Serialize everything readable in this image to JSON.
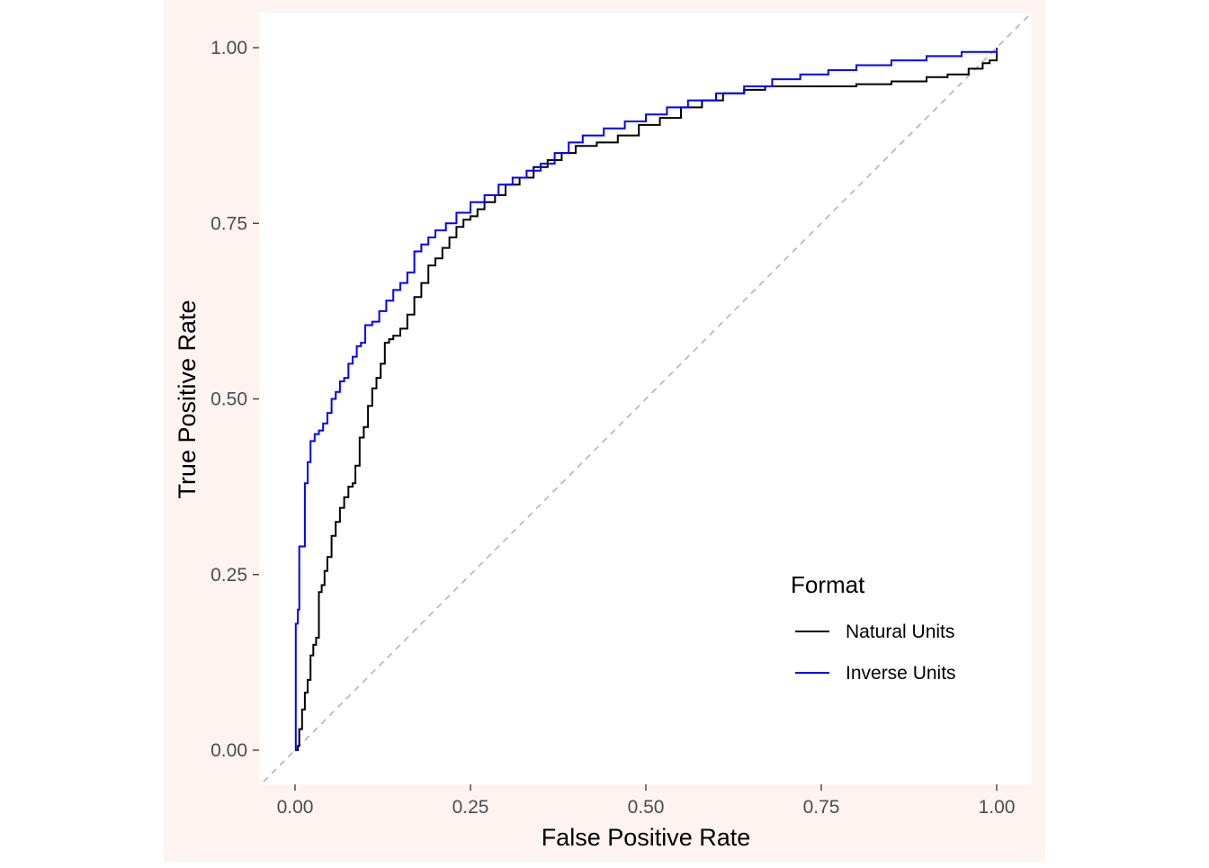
{
  "chart_data": {
    "type": "line",
    "title": "",
    "xlabel": "False Positive Rate",
    "ylabel": "True Positive Rate",
    "xlim": [
      0,
      1
    ],
    "ylim": [
      0,
      1
    ],
    "x_ticks": [
      "0.00",
      "0.25",
      "0.50",
      "0.75",
      "1.00"
    ],
    "y_ticks": [
      "0.00",
      "0.25",
      "0.50",
      "0.75",
      "1.00"
    ],
    "grid": false,
    "reference_line": {
      "from": [
        0,
        0
      ],
      "to": [
        1,
        1
      ],
      "style": "dashed",
      "color": "#b3b3b3"
    },
    "legend": {
      "title": "Format",
      "placement": "bottom-right-inside"
    },
    "colors": {
      "panel_border": "#fdf3f1",
      "axis_text": "#4d4d4d",
      "title_text": "#000000"
    },
    "series": [
      {
        "name": "Natural Units",
        "color": "#000000",
        "points": [
          [
            0.0,
            0.0
          ],
          [
            0.004,
            0.006
          ],
          [
            0.006,
            0.03
          ],
          [
            0.01,
            0.058
          ],
          [
            0.014,
            0.082
          ],
          [
            0.018,
            0.1
          ],
          [
            0.022,
            0.135
          ],
          [
            0.026,
            0.15
          ],
          [
            0.03,
            0.16
          ],
          [
            0.034,
            0.225
          ],
          [
            0.038,
            0.235
          ],
          [
            0.042,
            0.255
          ],
          [
            0.046,
            0.275
          ],
          [
            0.052,
            0.305
          ],
          [
            0.058,
            0.325
          ],
          [
            0.064,
            0.345
          ],
          [
            0.07,
            0.36
          ],
          [
            0.076,
            0.375
          ],
          [
            0.082,
            0.38
          ],
          [
            0.086,
            0.405
          ],
          [
            0.092,
            0.445
          ],
          [
            0.098,
            0.46
          ],
          [
            0.104,
            0.49
          ],
          [
            0.11,
            0.515
          ],
          [
            0.116,
            0.53
          ],
          [
            0.122,
            0.55
          ],
          [
            0.128,
            0.58
          ],
          [
            0.134,
            0.585
          ],
          [
            0.14,
            0.59
          ],
          [
            0.15,
            0.6
          ],
          [
            0.16,
            0.62
          ],
          [
            0.17,
            0.645
          ],
          [
            0.18,
            0.665
          ],
          [
            0.19,
            0.69
          ],
          [
            0.2,
            0.7
          ],
          [
            0.21,
            0.715
          ],
          [
            0.22,
            0.73
          ],
          [
            0.23,
            0.745
          ],
          [
            0.24,
            0.755
          ],
          [
            0.25,
            0.76
          ],
          [
            0.26,
            0.77
          ],
          [
            0.27,
            0.78
          ],
          [
            0.285,
            0.79
          ],
          [
            0.3,
            0.805
          ],
          [
            0.32,
            0.815
          ],
          [
            0.34,
            0.83
          ],
          [
            0.36,
            0.84
          ],
          [
            0.38,
            0.85
          ],
          [
            0.4,
            0.86
          ],
          [
            0.43,
            0.865
          ],
          [
            0.46,
            0.875
          ],
          [
            0.49,
            0.89
          ],
          [
            0.52,
            0.9
          ],
          [
            0.55,
            0.915
          ],
          [
            0.58,
            0.925
          ],
          [
            0.61,
            0.935
          ],
          [
            0.64,
            0.94
          ],
          [
            0.67,
            0.945
          ],
          [
            0.7,
            0.945
          ],
          [
            0.75,
            0.945
          ],
          [
            0.8,
            0.948
          ],
          [
            0.85,
            0.952
          ],
          [
            0.9,
            0.958
          ],
          [
            0.93,
            0.962
          ],
          [
            0.96,
            0.97
          ],
          [
            0.98,
            0.978
          ],
          [
            0.99,
            0.982
          ],
          [
            1.0,
            0.99
          ],
          [
            1.0,
            1.0
          ]
        ]
      },
      {
        "name": "Inverse Units",
        "color": "#0000ff",
        "points": [
          [
            0.0,
            0.0
          ],
          [
            0.001,
            0.18
          ],
          [
            0.004,
            0.2
          ],
          [
            0.006,
            0.29
          ],
          [
            0.01,
            0.29
          ],
          [
            0.014,
            0.38
          ],
          [
            0.018,
            0.41
          ],
          [
            0.022,
            0.44
          ],
          [
            0.028,
            0.45
          ],
          [
            0.034,
            0.455
          ],
          [
            0.04,
            0.465
          ],
          [
            0.046,
            0.48
          ],
          [
            0.052,
            0.5
          ],
          [
            0.058,
            0.51
          ],
          [
            0.064,
            0.525
          ],
          [
            0.07,
            0.53
          ],
          [
            0.076,
            0.55
          ],
          [
            0.082,
            0.56
          ],
          [
            0.088,
            0.575
          ],
          [
            0.094,
            0.58
          ],
          [
            0.1,
            0.605
          ],
          [
            0.11,
            0.61
          ],
          [
            0.12,
            0.625
          ],
          [
            0.13,
            0.64
          ],
          [
            0.14,
            0.655
          ],
          [
            0.15,
            0.665
          ],
          [
            0.16,
            0.68
          ],
          [
            0.17,
            0.71
          ],
          [
            0.18,
            0.72
          ],
          [
            0.19,
            0.73
          ],
          [
            0.2,
            0.74
          ],
          [
            0.215,
            0.75
          ],
          [
            0.23,
            0.765
          ],
          [
            0.25,
            0.78
          ],
          [
            0.27,
            0.79
          ],
          [
            0.29,
            0.805
          ],
          [
            0.31,
            0.815
          ],
          [
            0.33,
            0.825
          ],
          [
            0.35,
            0.835
          ],
          [
            0.37,
            0.85
          ],
          [
            0.39,
            0.865
          ],
          [
            0.41,
            0.875
          ],
          [
            0.44,
            0.885
          ],
          [
            0.47,
            0.895
          ],
          [
            0.5,
            0.905
          ],
          [
            0.53,
            0.915
          ],
          [
            0.56,
            0.925
          ],
          [
            0.6,
            0.935
          ],
          [
            0.64,
            0.945
          ],
          [
            0.68,
            0.955
          ],
          [
            0.72,
            0.962
          ],
          [
            0.76,
            0.968
          ],
          [
            0.8,
            0.975
          ],
          [
            0.85,
            0.982
          ],
          [
            0.9,
            0.988
          ],
          [
            0.95,
            0.994
          ],
          [
            1.0,
            1.0
          ]
        ]
      }
    ]
  }
}
